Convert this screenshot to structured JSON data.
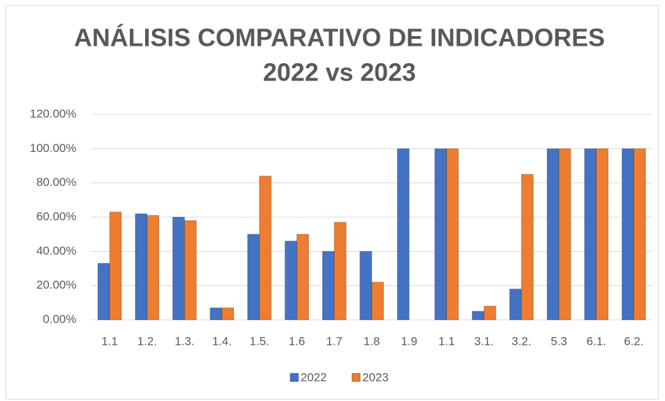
{
  "chart_data": {
    "type": "bar",
    "title": [
      "ANÁLISIS COMPARATIVO DE INDICADORES",
      "2022 vs 2023"
    ],
    "categories": [
      "1.1",
      "1.2.",
      "1.3.",
      "1.4.",
      "1.5.",
      "1.6",
      "1.7",
      "1.8",
      "1.9",
      "1.1",
      "3.1.",
      "3.2.",
      "5.3",
      "6.1.",
      "6.2."
    ],
    "series": [
      {
        "name": "2022",
        "color": "#4472c4",
        "values": [
          33,
          62,
          60,
          7,
          50,
          46,
          40,
          40,
          100,
          100,
          5,
          18,
          100,
          100,
          100
        ]
      },
      {
        "name": "2023",
        "color": "#ed7d31",
        "values": [
          63,
          61,
          58,
          7,
          84,
          50,
          57,
          22,
          null,
          100,
          8,
          85,
          100,
          100,
          100
        ]
      }
    ],
    "ylim": [
      0,
      120
    ],
    "yticks": [
      {
        "value": 0,
        "label": "0.00%"
      },
      {
        "value": 20,
        "label": "20.00%"
      },
      {
        "value": 40,
        "label": "40.00%"
      },
      {
        "value": 60,
        "label": "60.00%"
      },
      {
        "value": 80,
        "label": "80.00%"
      },
      {
        "value": 100,
        "label": "100.00%"
      },
      {
        "value": 120,
        "label": "120.00%"
      }
    ],
    "grid": true,
    "legend": "bottom"
  }
}
